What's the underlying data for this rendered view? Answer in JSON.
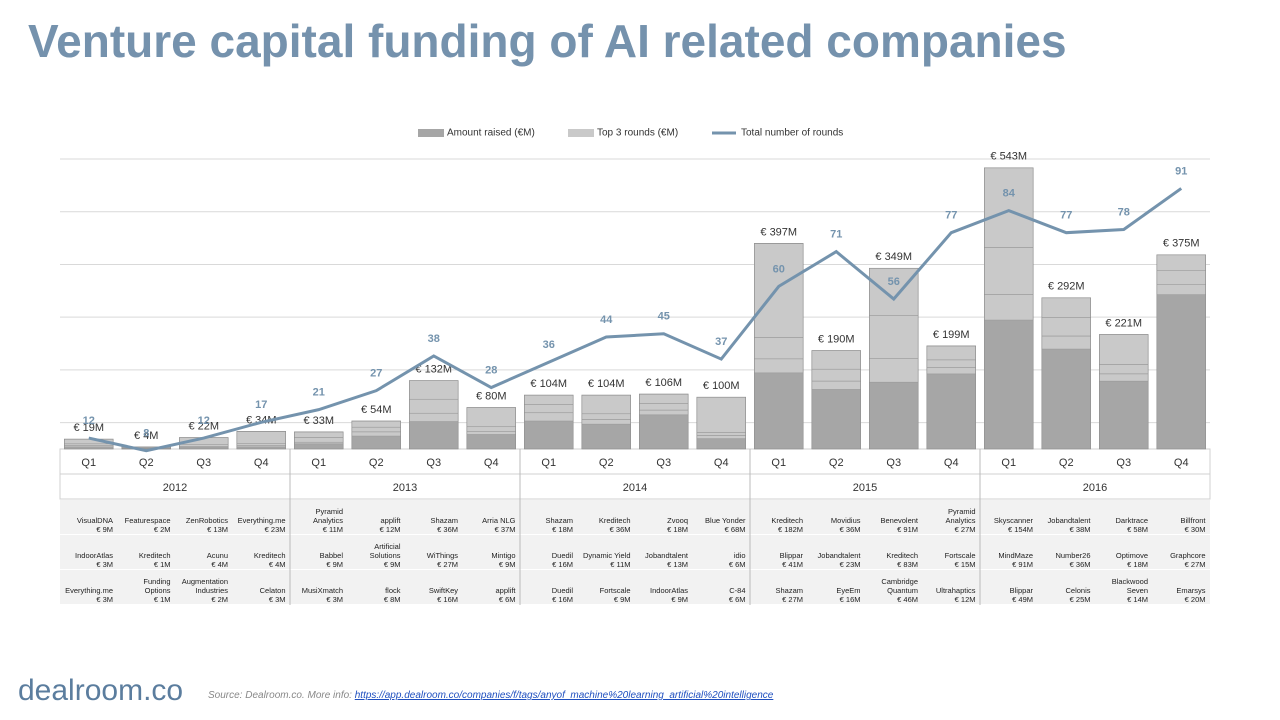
{
  "chart_data": {
    "type": "bar",
    "title": "Venture capital funding of AI related companies",
    "categories": [
      "Q1",
      "Q2",
      "Q3",
      "Q4",
      "Q1",
      "Q2",
      "Q3",
      "Q4",
      "Q1",
      "Q2",
      "Q3",
      "Q4",
      "Q1",
      "Q2",
      "Q3",
      "Q4",
      "Q1",
      "Q2",
      "Q3",
      "Q4"
    ],
    "groups": [
      "2012",
      "2013",
      "2014",
      "2015",
      "2016"
    ],
    "ylim": [
      0,
      560
    ],
    "y2lim": [
      0,
      100
    ],
    "grid": true,
    "legend": "top",
    "series": [
      {
        "name": "Amount raised (€M)",
        "color": "#a6a6a6",
        "values": [
          19,
          4,
          22,
          34,
          33,
          54,
          132,
          80,
          104,
          104,
          106,
          100,
          397,
          190,
          349,
          199,
          543,
          292,
          221,
          375
        ],
        "value_labels": [
          "€ 19M",
          "€ 4M",
          "€ 22M",
          "€ 34M",
          "€ 33M",
          "€ 54M",
          "€ 132M",
          "€ 80M",
          "€ 104M",
          "€ 104M",
          "€ 106M",
          "€ 100M",
          "€ 397M",
          "€ 190M",
          "€ 349M",
          "€ 199M",
          "€ 543M",
          "€ 292M",
          "€ 221M",
          "€ 375M"
        ]
      },
      {
        "name": "Top 3 rounds (€M)",
        "color": "#c9c9c9",
        "rounds": [
          {
            "names": [
              "VisualDNA",
              "Featurespace",
              "ZenRobotics",
              "Everything.me",
              "Pyramid Analytics",
              "applift",
              "Shazam",
              "Arria NLG",
              "Shazam",
              "Kreditech",
              "Zvooq",
              "Blue Yonder",
              "Kreditech",
              "Movidius",
              "Benevolent",
              "Pyramid Analytics",
              "Skyscanner",
              "Jobandtalent",
              "Darktrace",
              "Billfront"
            ],
            "values": [
              9,
              2,
              13,
              23,
              11,
              12,
              36,
              37,
              18,
              36,
              18,
              68,
              182,
              36,
              91,
              27,
              154,
              38,
              58,
              30
            ],
            "value_labels": [
              "€ 9M",
              "€ 2M",
              "€ 13M",
              "€ 23M",
              "€ 11M",
              "€ 12M",
              "€ 36M",
              "€ 37M",
              "€ 18M",
              "€ 36M",
              "€ 18M",
              "€ 68M",
              "€ 182M",
              "€ 36M",
              "€ 91M",
              "€ 27M",
              "€ 154M",
              "€ 38M",
              "€ 58M",
              "€ 30M"
            ]
          },
          {
            "names": [
              "IndoorAtlas",
              "Kreditech",
              "Acunu",
              "Kreditech",
              "Babbel",
              "Artificial Solutions",
              "WiThings",
              "Mintigo",
              "Duedil",
              "Dynamic Yield",
              "Jobandtalent",
              "idio",
              "Blippar",
              "Jobandtalent",
              "Kreditech",
              "Fortscale",
              "MindMaze",
              "Number26",
              "Optimove",
              "Graphcore"
            ],
            "values": [
              3,
              1,
              4,
              4,
              9,
              9,
              27,
              9,
              16,
              11,
              13,
              6,
              41,
              23,
              83,
              15,
              91,
              36,
              18,
              27
            ],
            "value_labels": [
              "€ 3M",
              "€ 1M",
              "€ 4M",
              "€ 4M",
              "€ 9M",
              "€ 9M",
              "€ 27M",
              "€ 9M",
              "€ 16M",
              "€ 11M",
              "€ 13M",
              "€ 6M",
              "€ 41M",
              "€ 23M",
              "€ 83M",
              "€ 15M",
              "€ 91M",
              "€ 36M",
              "€ 18M",
              "€ 27M"
            ]
          },
          {
            "names": [
              "Everything.me",
              "Funding Options",
              "Augmentation Industries",
              "Celaton",
              "MusiXmatch",
              "flock",
              "SwiftKey",
              "applift",
              "Duedil",
              "Fortscale",
              "IndoorAtlas",
              "C-84",
              "Shazam",
              "EyeEm",
              "Cambridge Quantum",
              "Ultrahaptics",
              "Blippar",
              "Celonis",
              "Blackwood Seven",
              "Emarsys"
            ],
            "values": [
              3,
              1,
              2,
              3,
              3,
              8,
              16,
              6,
              16,
              9,
              9,
              6,
              27,
              16,
              46,
              12,
              49,
              25,
              14,
              20
            ],
            "value_labels": [
              "€ 3M",
              "€ 1M",
              "€ 2M",
              "€ 3M",
              "€ 3M",
              "€ 8M",
              "€ 16M",
              "€ 6M",
              "€ 16M",
              "€ 9M",
              "€ 9M",
              "€ 6M",
              "€ 27M",
              "€ 16M",
              "€ 46M",
              "€ 12M",
              "€ 49M",
              "€ 25M",
              "€ 14M",
              "€ 20M"
            ]
          }
        ]
      },
      {
        "name": "Total number of rounds",
        "color": "#7493ad",
        "type": "line",
        "axis": "y2",
        "values": [
          12,
          8,
          12,
          17,
          21,
          27,
          38,
          28,
          36,
          44,
          45,
          37,
          60,
          71,
          56,
          77,
          84,
          77,
          78,
          91
        ]
      }
    ]
  },
  "footer": {
    "logo": "dealroom.co",
    "source": "Source: Dealroom.co. More info:",
    "link": "https://app.dealroom.co/companies/f/tags/anyof_machine%20learning_artificial%20intelligence"
  }
}
